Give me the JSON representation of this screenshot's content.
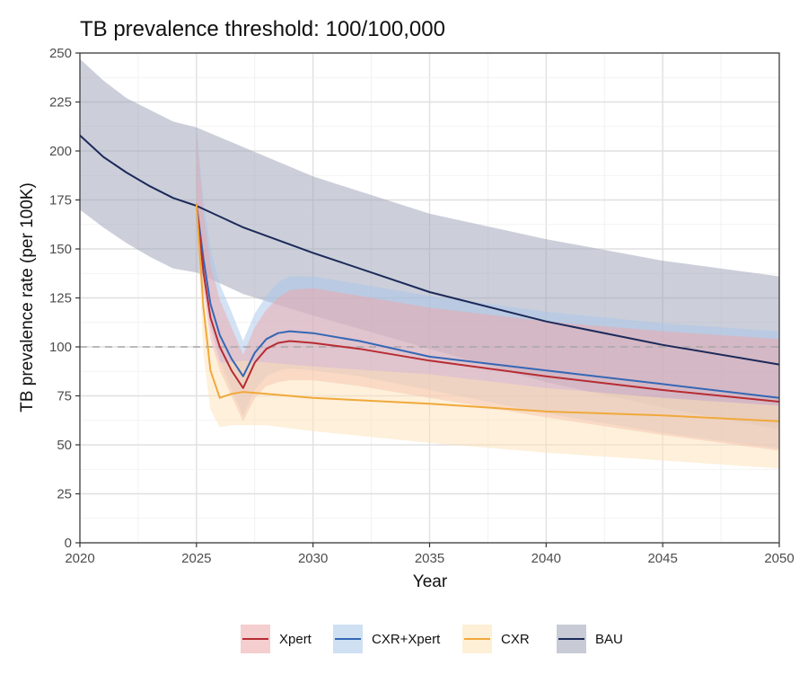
{
  "chart_data": {
    "type": "line",
    "title": "TB prevalence threshold: 100/100,000",
    "xlabel": "Year",
    "ylabel": "TB prevalence rate (per 100K)",
    "xlim": [
      2020,
      2050
    ],
    "ylim": [
      0,
      250
    ],
    "x_ticks": [
      "2020",
      "2025",
      "2030",
      "2035",
      "2040",
      "2045",
      "2050"
    ],
    "y_ticks": [
      "0",
      "25",
      "50",
      "75",
      "100",
      "125",
      "150",
      "175",
      "200",
      "225",
      "250"
    ],
    "threshold": 100,
    "grid": true,
    "legend_position": "bottom",
    "series": [
      {
        "name": "BAU",
        "line_color": "#1c2a5a",
        "fill_color": "#9aa0b5",
        "x": [
          2020,
          2021,
          2022,
          2023,
          2024,
          2025,
          2027,
          2030,
          2035,
          2040,
          2045,
          2050
        ],
        "y": [
          208,
          197,
          189,
          182,
          176,
          172,
          161,
          148,
          128,
          113,
          101,
          91
        ],
        "lower": [
          170,
          161,
          153,
          146,
          140,
          138,
          127,
          116,
          99,
          82,
          69,
          58
        ],
        "upper": [
          247,
          236,
          227,
          221,
          215,
          212,
          202,
          187,
          168,
          155,
          144,
          136
        ]
      },
      {
        "name": "CXR+Xpert",
        "line_color": "#3567b5",
        "fill_color": "#a8c6ea",
        "x": [
          2025,
          2025.3,
          2025.6,
          2026,
          2026.5,
          2027,
          2027.5,
          2028,
          2028.5,
          2029,
          2030,
          2032,
          2035,
          2040,
          2045,
          2050
        ],
        "y": [
          173,
          145,
          122,
          106,
          94,
          85,
          97,
          104,
          107,
          108,
          107,
          103,
          95,
          88,
          81,
          74
        ],
        "lower": [
          171,
          134,
          110,
          93,
          78,
          65,
          78,
          85,
          88,
          89,
          88,
          85,
          78,
          66,
          56,
          48
        ],
        "upper": [
          213,
          175,
          150,
          132,
          118,
          103,
          117,
          126,
          133,
          136,
          136,
          132,
          126,
          118,
          112,
          108
        ]
      },
      {
        "name": "Xpert",
        "line_color": "#b72c32",
        "fill_color": "#eda6a8",
        "x": [
          2025,
          2025.3,
          2025.6,
          2026,
          2026.5,
          2027,
          2027.5,
          2028,
          2028.5,
          2029,
          2030,
          2032,
          2035,
          2040,
          2045,
          2050
        ],
        "y": [
          173,
          138,
          115,
          100,
          88,
          79,
          92,
          99,
          102,
          103,
          102,
          99,
          93,
          85,
          78,
          72
        ],
        "lower": [
          171,
          128,
          104,
          88,
          75,
          62,
          74,
          80,
          82,
          83,
          83,
          80,
          74,
          64,
          55,
          47
        ],
        "upper": [
          210,
          168,
          142,
          124,
          110,
          96,
          110,
          119,
          125,
          129,
          130,
          126,
          120,
          113,
          108,
          104
        ]
      },
      {
        "name": "CXR",
        "line_color": "#f0a93a",
        "fill_color": "#fde2b6",
        "x": [
          2025,
          2025.3,
          2025.6,
          2026,
          2026.5,
          2027,
          2028,
          2030,
          2035,
          2040,
          2045,
          2050
        ],
        "y": [
          173,
          120,
          88,
          74,
          76,
          77,
          76,
          74,
          71,
          67,
          65,
          62
        ],
        "lower": [
          170,
          96,
          68,
          59,
          60,
          60,
          60,
          57,
          51,
          46,
          42,
          38
        ],
        "upper": [
          176,
          125,
          103,
          92,
          92,
          93,
          92,
          90,
          86,
          79,
          74,
          70
        ]
      }
    ]
  }
}
